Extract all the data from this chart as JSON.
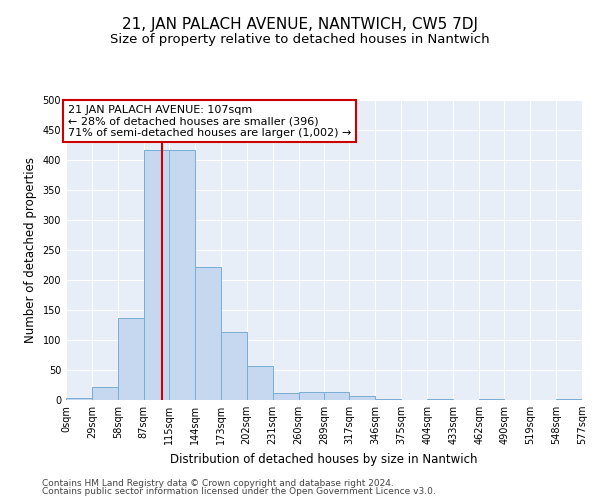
{
  "title": "21, JAN PALACH AVENUE, NANTWICH, CW5 7DJ",
  "subtitle": "Size of property relative to detached houses in Nantwich",
  "xlabel": "Distribution of detached houses by size in Nantwich",
  "ylabel": "Number of detached properties",
  "bar_color": "#c5d8f0",
  "bar_edge_color": "#7aadd4",
  "bin_edges": [
    0,
    29,
    58,
    87,
    115,
    144,
    173,
    202,
    231,
    260,
    289,
    317,
    346,
    375,
    404,
    433,
    462,
    490,
    519,
    548,
    577
  ],
  "bar_heights": [
    3,
    22,
    137,
    416,
    416,
    222,
    114,
    56,
    12,
    13,
    13,
    6,
    1,
    0,
    2,
    0,
    1,
    0,
    0,
    2
  ],
  "tick_labels": [
    "0sqm",
    "29sqm",
    "58sqm",
    "87sqm",
    "115sqm",
    "144sqm",
    "173sqm",
    "202sqm",
    "231sqm",
    "260sqm",
    "289sqm",
    "317sqm",
    "346sqm",
    "375sqm",
    "404sqm",
    "433sqm",
    "462sqm",
    "490sqm",
    "519sqm",
    "548sqm",
    "577sqm"
  ],
  "property_size": 107,
  "vline_color": "#cc0000",
  "annotation_text": "21 JAN PALACH AVENUE: 107sqm\n← 28% of detached houses are smaller (396)\n71% of semi-detached houses are larger (1,002) →",
  "annotation_box_color": "#ffffff",
  "annotation_box_edge": "#cc0000",
  "ylim": [
    0,
    500
  ],
  "yticks": [
    0,
    50,
    100,
    150,
    200,
    250,
    300,
    350,
    400,
    450,
    500
  ],
  "plot_bg_color": "#e8eef8",
  "footer_line1": "Contains HM Land Registry data © Crown copyright and database right 2024.",
  "footer_line2": "Contains public sector information licensed under the Open Government Licence v3.0.",
  "title_fontsize": 11,
  "subtitle_fontsize": 9.5,
  "axis_label_fontsize": 8.5,
  "tick_fontsize": 7,
  "annotation_fontsize": 8,
  "footer_fontsize": 6.5
}
